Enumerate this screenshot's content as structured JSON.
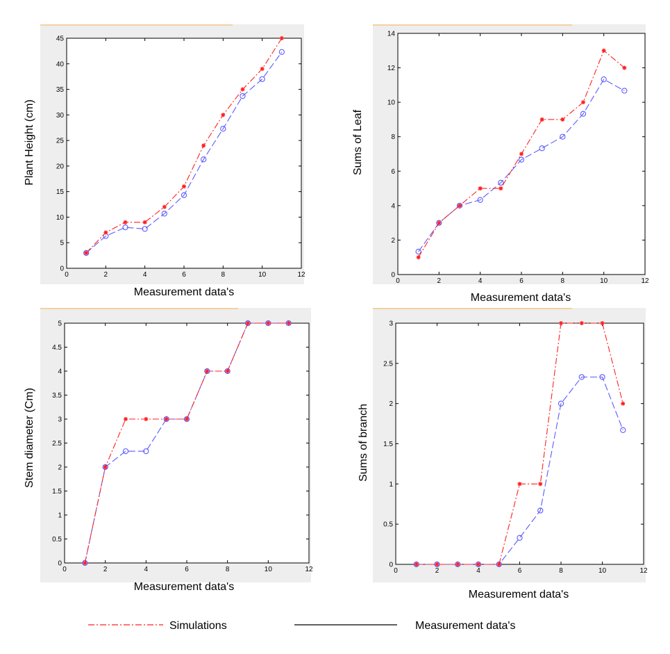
{
  "colors": {
    "simulation": "#ff2020",
    "measurement": "#5a5aff",
    "frame_bg": "#eeeeee",
    "axes_bg": "#ffffff",
    "accent": "#f5d0a0"
  },
  "legend": {
    "simulations": "Simulations",
    "measurements": "Measurement data's"
  },
  "chart_data": [
    {
      "type": "line",
      "xlabel": "Measurement data's",
      "ylabel": "Plant Height (cm)",
      "xlim": [
        0,
        12
      ],
      "ylim": [
        0,
        45
      ],
      "xticks": [
        0,
        2,
        4,
        6,
        8,
        10,
        12
      ],
      "yticks": [
        0,
        5,
        10,
        15,
        20,
        25,
        30,
        35,
        40,
        45
      ],
      "grid": false,
      "x": [
        1,
        2,
        3,
        4,
        5,
        6,
        7,
        8,
        9,
        10,
        11
      ],
      "series": [
        {
          "values": [
            3,
            7,
            9,
            9,
            12,
            16,
            24,
            30,
            35,
            39,
            45
          ]
        },
        {
          "values": [
            3,
            6.3,
            8,
            7.7,
            10.7,
            14.3,
            21.3,
            27.3,
            33.7,
            37,
            42.3
          ]
        }
      ]
    },
    {
      "type": "line",
      "xlabel": "Measurement data's",
      "ylabel": "Sums of Leaf",
      "xlim": [
        0,
        12
      ],
      "ylim": [
        0,
        14
      ],
      "xticks": [
        0,
        2,
        4,
        6,
        8,
        10,
        12
      ],
      "yticks": [
        0,
        2,
        4,
        6,
        8,
        10,
        12,
        14
      ],
      "grid": false,
      "x": [
        1,
        2,
        3,
        4,
        5,
        6,
        7,
        8,
        9,
        10,
        11
      ],
      "series": [
        {
          "values": [
            1,
            3,
            4,
            5,
            5,
            7,
            9,
            9,
            10,
            13,
            12
          ]
        },
        {
          "values": [
            1.33,
            3,
            4,
            4.33,
            5.33,
            6.67,
            7.33,
            8,
            9.33,
            11.33,
            10.67
          ]
        }
      ]
    },
    {
      "type": "line",
      "xlabel": "Measurement data's",
      "ylabel": "Stem diameter (Cm)",
      "xlim": [
        0,
        12
      ],
      "ylim": [
        0,
        5
      ],
      "xticks": [
        0,
        2,
        4,
        6,
        8,
        10,
        12
      ],
      "yticks": [
        0,
        0.5,
        1,
        1.5,
        2,
        2.5,
        3,
        3.5,
        4,
        4.5,
        5
      ],
      "grid": false,
      "x": [
        1,
        2,
        3,
        4,
        5,
        6,
        7,
        8,
        9,
        10,
        11
      ],
      "series": [
        {
          "values": [
            0,
            2,
            3,
            3,
            3,
            3,
            4,
            4,
            5,
            5,
            5
          ]
        },
        {
          "values": [
            0,
            2,
            2.33,
            2.33,
            3,
            3,
            4,
            4,
            5,
            5,
            5
          ]
        }
      ]
    },
    {
      "type": "line",
      "xlabel": "Measurement data's",
      "ylabel": "Sums of branch",
      "xlim": [
        0,
        12
      ],
      "ylim": [
        0,
        3
      ],
      "xticks": [
        0,
        2,
        4,
        6,
        8,
        10,
        12
      ],
      "yticks": [
        0,
        0.5,
        1,
        1.5,
        2,
        2.5,
        3
      ],
      "grid": false,
      "x": [
        1,
        2,
        3,
        4,
        5,
        6,
        7,
        8,
        9,
        10,
        11
      ],
      "series": [
        {
          "values": [
            0,
            0,
            0,
            0,
            0,
            1,
            1,
            3,
            3,
            3,
            2
          ]
        },
        {
          "values": [
            0,
            0,
            0,
            0,
            0,
            0.33,
            0.67,
            2,
            2.33,
            2.33,
            1.67
          ]
        }
      ]
    }
  ]
}
